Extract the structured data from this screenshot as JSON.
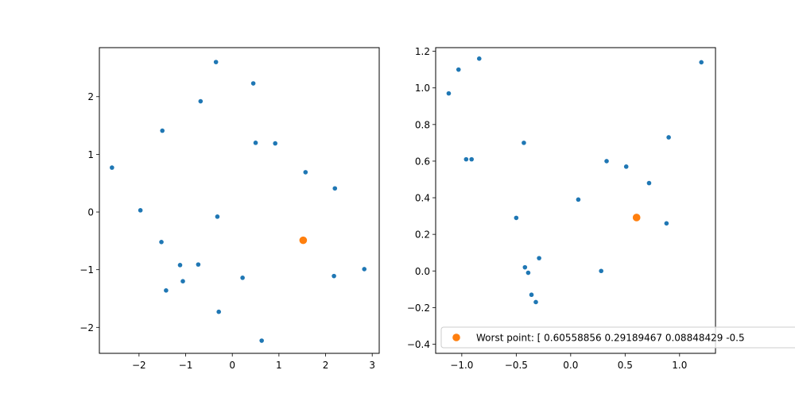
{
  "chart_data": [
    {
      "type": "scatter",
      "xlim": [
        -2.85,
        3.15
      ],
      "ylim": [
        -2.45,
        2.85
      ],
      "xticks": [
        -2,
        -1,
        0,
        1,
        2,
        3
      ],
      "yticks": [
        -2,
        -1,
        0,
        1,
        2
      ],
      "xtick_labels": [
        "−2",
        "−1",
        "0",
        "1",
        "2",
        "3"
      ],
      "ytick_labels": [
        "−2",
        "−1",
        "0",
        "1",
        "2"
      ],
      "grid": false,
      "series": [
        {
          "color": "#1f77b4",
          "points": [
            [
              -0.35,
              2.6
            ],
            [
              0.45,
              2.23
            ],
            [
              -0.68,
              1.92
            ],
            [
              -1.5,
              1.41
            ],
            [
              0.5,
              1.2
            ],
            [
              0.92,
              1.19
            ],
            [
              -2.58,
              0.77
            ],
            [
              1.57,
              0.69
            ],
            [
              2.2,
              0.41
            ],
            [
              -1.97,
              0.03
            ],
            [
              -0.32,
              -0.08
            ],
            [
              -1.52,
              -0.52
            ],
            [
              -1.12,
              -0.92
            ],
            [
              -0.73,
              -0.91
            ],
            [
              -1.06,
              -1.2
            ],
            [
              0.22,
              -1.14
            ],
            [
              2.18,
              -1.11
            ],
            [
              2.83,
              -0.99
            ],
            [
              -1.42,
              -1.36
            ],
            [
              -0.29,
              -1.73
            ],
            [
              0.63,
              -2.23
            ]
          ]
        },
        {
          "color": "#ff7f0e",
          "points": [
            [
              1.52,
              -0.49
            ]
          ]
        }
      ]
    },
    {
      "type": "scatter",
      "xlim": [
        -1.24,
        1.33
      ],
      "ylim": [
        -0.45,
        1.22
      ],
      "xticks": [
        -1.0,
        -0.5,
        0.0,
        0.5,
        1.0
      ],
      "yticks": [
        -0.4,
        -0.2,
        0.0,
        0.2,
        0.4,
        0.6,
        0.8,
        1.0,
        1.2
      ],
      "xtick_labels": [
        "−1.0",
        "−0.5",
        "0.0",
        "0.5",
        "1.0"
      ],
      "ytick_labels": [
        "−0.4",
        "−0.2",
        "0.0",
        "0.2",
        "0.4",
        "0.6",
        "0.8",
        "1.0",
        "1.2"
      ],
      "grid": false,
      "legend": "lower-right",
      "series": [
        {
          "color": "#1f77b4",
          "points": [
            [
              -1.12,
              0.97
            ],
            [
              -1.03,
              1.1
            ],
            [
              -0.84,
              1.16
            ],
            [
              1.2,
              1.14
            ],
            [
              -0.43,
              0.7
            ],
            [
              -0.96,
              0.61
            ],
            [
              -0.91,
              0.61
            ],
            [
              0.33,
              0.6
            ],
            [
              0.51,
              0.57
            ],
            [
              0.9,
              0.73
            ],
            [
              0.72,
              0.48
            ],
            [
              0.07,
              0.39
            ],
            [
              -0.5,
              0.29
            ],
            [
              0.88,
              0.26
            ],
            [
              -0.29,
              0.07
            ],
            [
              -0.42,
              0.02
            ],
            [
              -0.39,
              -0.01
            ],
            [
              0.28,
              0.0
            ],
            [
              -0.36,
              -0.13
            ],
            [
              -0.32,
              -0.17
            ]
          ]
        },
        {
          "name": "Worst point: [ 0.60558856  0.29189467  0.08848429 -0.5",
          "color": "#ff7f0e",
          "points": [
            [
              0.605,
              0.292
            ]
          ]
        }
      ]
    }
  ]
}
